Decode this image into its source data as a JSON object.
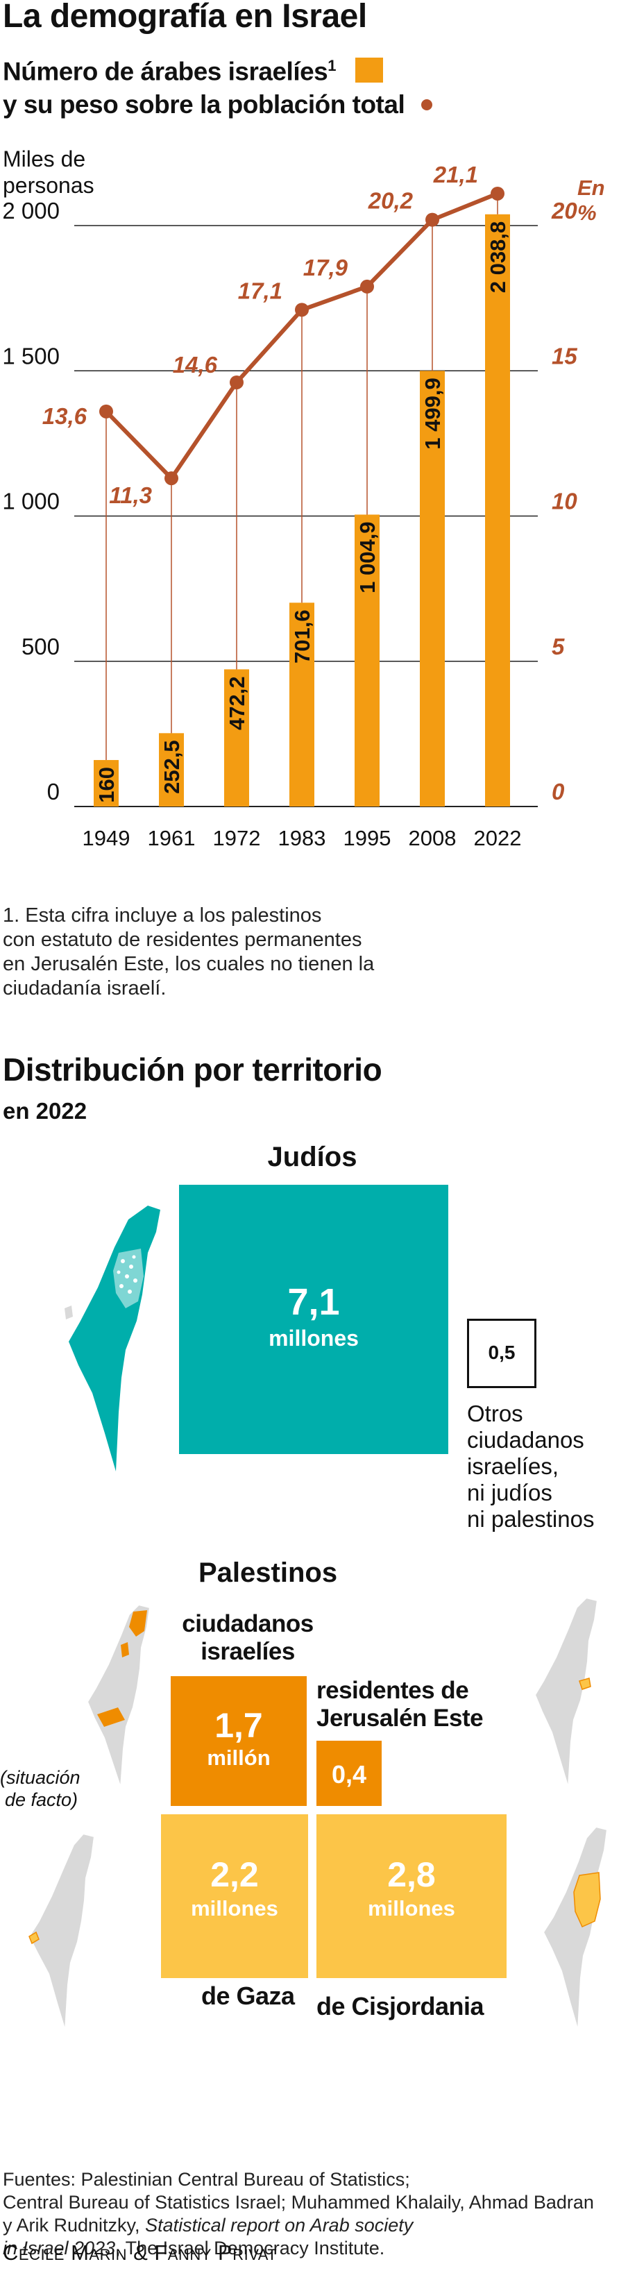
{
  "title": "La demografía en Israel",
  "chart_data": {
    "type": "bar",
    "title": "Número de árabes israelíes",
    "title_superscript": "1",
    "subtitle": "y su peso sobre la población total",
    "ylabel_left_1": "Miles de",
    "ylabel_left_2": "personas",
    "ylabel_right": "En %",
    "ylim": [
      0,
      2000
    ],
    "ylim_right": [
      0,
      20
    ],
    "yticks": [
      0,
      500,
      1000,
      1500,
      2000
    ],
    "ytick_labels": [
      "0",
      "500",
      "1 000",
      "1 500",
      "2 000"
    ],
    "yticks_right": [
      0,
      5,
      10,
      15,
      20
    ],
    "ytick_labels_right": [
      "0",
      "5",
      "10",
      "15",
      "20"
    ],
    "categories": [
      "1949",
      "1961",
      "1972",
      "1983",
      "1995",
      "2008",
      "2022"
    ],
    "series": [
      {
        "values": [
          160,
          252.5,
          472.2,
          701.6,
          1004.9,
          1499.9,
          2038.8
        ],
        "labels": [
          "160",
          "252,5",
          "472,2",
          "701,6",
          "1 004,9",
          "1 499,9",
          "2 038,8"
        ],
        "color": "#f39c12",
        "axis": "left"
      },
      {
        "values": [
          13.6,
          11.3,
          14.6,
          17.1,
          17.9,
          20.2,
          21.1
        ],
        "labels": [
          "13,6",
          "11,3",
          "14,6",
          "17,1",
          "17,9",
          "20,2",
          "21,1"
        ],
        "color": "#b5522b",
        "axis": "right"
      }
    ]
  },
  "footnote": [
    "1. Esta cifra incluye a los palestinos",
    "con estatuto de residentes permanentes",
    "en Jerusalén Este, los cuales no tienen la",
    "ciudadanía israelí."
  ],
  "territory": {
    "title": "Distribución por territorio",
    "subtitle": "en 2022",
    "jews": {
      "heading": "Judíos",
      "value": "7,1",
      "unit": "millones",
      "color": "#00aeab"
    },
    "others": {
      "value": "0,5",
      "label": [
        "Otros",
        "ciudadanos",
        "israelíes,",
        "ni judíos",
        "ni palestinos"
      ]
    },
    "palestinians_heading": "Palestinos",
    "citizens": {
      "label": [
        "ciudadanos",
        "israelíes"
      ],
      "value": "1,7",
      "unit": "millón",
      "color": "#ef8c00"
    },
    "jerusalem": {
      "label": [
        "residentes de",
        "Jerusalén Este"
      ],
      "value": "0,4",
      "color": "#ef8c00"
    },
    "gaza": {
      "value": "2,2",
      "unit": "millones",
      "label": "de Gaza",
      "color": "#fcc548"
    },
    "westbank": {
      "value": "2,8",
      "unit": "millones",
      "label": "de Cisjordania",
      "color": "#fcc548"
    },
    "de_facto_note": [
      "(situación",
      "de facto)"
    ]
  },
  "sources": {
    "line1": "Fuentes: Palestinian Central Bureau of Statistics;",
    "line2": "Central Bureau of Statistics Israel; Muhammed Khalaily, Ahmad Badran",
    "line3": "y Arik Rudnitzky,",
    "line3_italic": "Statistical report on Arab society",
    "line4_italic": "in Israel 2023",
    "line4": ", The Israel Democracy Institute."
  },
  "credits": "Cécile Marin & Fanny Privat"
}
